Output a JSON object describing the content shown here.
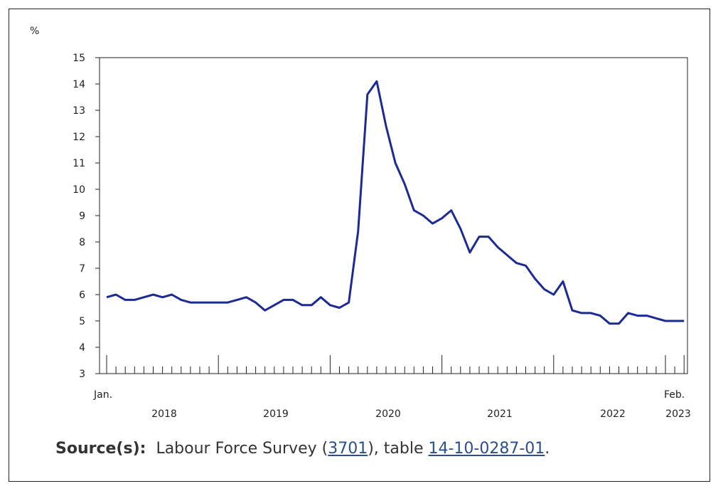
{
  "chart_data": {
    "type": "line",
    "ylabel": "%",
    "ylim": [
      3,
      15
    ],
    "yticks": [
      "3",
      "4",
      "5",
      "6",
      "7",
      "8",
      "9",
      "10",
      "11",
      "12",
      "13",
      "14",
      "15"
    ],
    "x_start_label": "Jan.",
    "x_end_label": "Feb.",
    "year_labels": [
      "2018",
      "2019",
      "2020",
      "2021",
      "2022",
      "2023"
    ],
    "line_color": "#1c2a94",
    "grid": false,
    "series": [
      {
        "values": [
          5.9,
          6.0,
          5.8,
          5.8,
          5.9,
          6.0,
          5.9,
          6.0,
          5.8,
          5.7,
          5.7,
          5.7,
          5.7,
          5.7,
          5.8,
          5.9,
          5.7,
          5.4,
          5.6,
          5.8,
          5.8,
          5.6,
          5.6,
          5.9,
          5.6,
          5.5,
          5.7,
          8.4,
          13.6,
          14.1,
          12.4,
          11.0,
          10.2,
          9.2,
          9.0,
          8.7,
          8.9,
          9.2,
          8.5,
          7.6,
          8.2,
          8.2,
          7.8,
          7.5,
          7.2,
          7.1,
          6.6,
          6.2,
          6.0,
          6.5,
          5.4,
          5.3,
          5.3,
          5.2,
          4.9,
          4.9,
          5.3,
          5.2,
          5.2,
          5.1,
          5.0,
          5.0,
          5.0
        ]
      }
    ]
  },
  "source": {
    "label": "Source(s):",
    "text_before": "Labour Force Survey (",
    "link1": "3701",
    "text_middle": "), table ",
    "link2": "14-10-0287-01",
    "text_after": "."
  }
}
